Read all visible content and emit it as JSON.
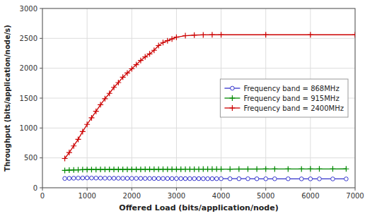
{
  "chart_data": {
    "type": "line",
    "xlabel": "Offered Load (bits/application/node)",
    "ylabel": "Throughput (bits/application/node/s)",
    "xlim": [
      0,
      7000
    ],
    "ylim": [
      0,
      3000
    ],
    "xticks": [
      0,
      1000,
      2000,
      3000,
      4000,
      5000,
      6000,
      7000
    ],
    "yticks": [
      0,
      500,
      1000,
      1500,
      2000,
      2500,
      3000
    ],
    "grid": true,
    "legend": "right",
    "series": [
      {
        "name": "Frequency band = 868MHz",
        "color": "#3333cc",
        "marker": "circle",
        "x": [
          500,
          600,
          700,
          800,
          900,
          1000,
          1100,
          1200,
          1300,
          1400,
          1500,
          1600,
          1700,
          1800,
          1900,
          2000,
          2100,
          2200,
          2300,
          2400,
          2500,
          2600,
          2700,
          2800,
          2900,
          3000,
          3100,
          3200,
          3300,
          3400,
          3500,
          3600,
          3700,
          3800,
          3900,
          4000,
          4200,
          4400,
          4600,
          4800,
          5000,
          5200,
          5500,
          5800,
          6000,
          6200,
          6500,
          6800
        ],
        "values": [
          155,
          158,
          160,
          162,
          163,
          165,
          163,
          162,
          161,
          160,
          160,
          159,
          159,
          158,
          158,
          157,
          157,
          157,
          156,
          156,
          155,
          155,
          155,
          155,
          154,
          154,
          154,
          153,
          153,
          153,
          153,
          152,
          152,
          152,
          152,
          152,
          151,
          151,
          151,
          150,
          150,
          150,
          150,
          149,
          149,
          149,
          148,
          148
        ]
      },
      {
        "name": "Frequency band = 915MHz",
        "color": "#008800",
        "marker": "plus",
        "x": [
          500,
          600,
          700,
          800,
          900,
          1000,
          1100,
          1200,
          1300,
          1400,
          1500,
          1600,
          1700,
          1800,
          1900,
          2000,
          2100,
          2200,
          2300,
          2400,
          2500,
          2600,
          2700,
          2800,
          2900,
          3000,
          3100,
          3200,
          3300,
          3400,
          3500,
          3600,
          3700,
          3800,
          3900,
          4000,
          4200,
          4400,
          4600,
          4800,
          5000,
          5200,
          5500,
          5800,
          6000,
          6200,
          6500,
          6800
        ],
        "values": [
          290,
          295,
          298,
          300,
          303,
          305,
          305,
          305,
          306,
          306,
          307,
          307,
          307,
          307,
          308,
          308,
          308,
          308,
          309,
          309,
          309,
          309,
          310,
          310,
          310,
          310,
          310,
          311,
          311,
          311,
          311,
          312,
          312,
          312,
          312,
          312,
          312,
          313,
          313,
          313,
          314,
          314,
          314,
          314,
          315,
          315,
          315,
          316
        ]
      },
      {
        "name": "Frequency band = 2400MHz",
        "color": "#cc0000",
        "marker": "plus",
        "x": [
          500,
          600,
          700,
          800,
          900,
          1000,
          1100,
          1200,
          1300,
          1400,
          1500,
          1600,
          1700,
          1800,
          1900,
          2000,
          2100,
          2200,
          2300,
          2400,
          2500,
          2600,
          2700,
          2800,
          2900,
          3000,
          3200,
          3400,
          3600,
          3800,
          4000,
          5000,
          6000,
          7000
        ],
        "values": [
          490,
          590,
          700,
          810,
          940,
          1060,
          1170,
          1280,
          1390,
          1490,
          1580,
          1680,
          1760,
          1850,
          1920,
          1990,
          2060,
          2130,
          2190,
          2240,
          2300,
          2380,
          2430,
          2460,
          2490,
          2520,
          2545,
          2554,
          2558,
          2560,
          2560,
          2560,
          2560,
          2560
        ]
      }
    ]
  }
}
